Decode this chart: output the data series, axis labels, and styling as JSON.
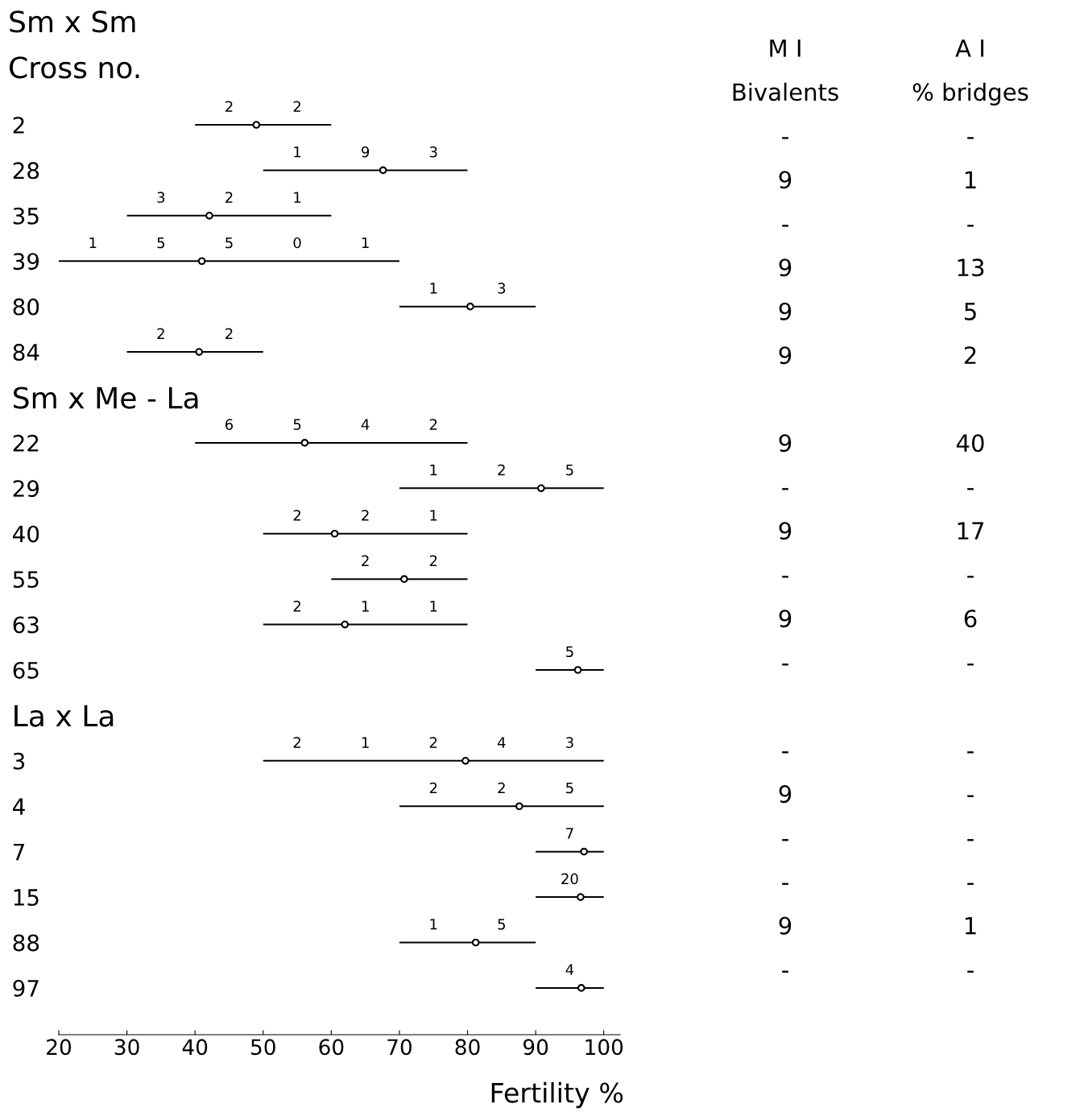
{
  "chart_data": [
    {
      "type": "bar",
      "orientation": "horizontal",
      "title": "Sm x Sm",
      "ylabel": "Cross no.",
      "xlabel": "Fertility %",
      "categories": [
        "2",
        "28",
        "35",
        "39",
        "80",
        "84",
        "Sm x Me - La",
        "22",
        "29",
        "40",
        "55",
        "63",
        "65",
        "La x La",
        "3",
        "4",
        "7",
        "15",
        "88",
        "97"
      ],
      "series": [
        {
          "type": "bar",
          "color": "#000000",
          "base": [
            40,
            50,
            30,
            20,
            70,
            30,
            null,
            40,
            70,
            50,
            60,
            50,
            90,
            null,
            50,
            70,
            90,
            90,
            70,
            90
          ],
          "values": [
            20,
            30,
            30,
            50,
            20,
            20,
            null,
            40,
            30,
            30,
            20,
            30,
            10,
            null,
            50,
            30,
            10,
            10,
            20,
            10
          ]
        },
        {
          "type": "scatter",
          "color": "#000000",
          "marker": "circle",
          "values": [
            49.0,
            67.6,
            42.1,
            41.0,
            80.4,
            40.6,
            null,
            56.1,
            90.8,
            60.5,
            70.7,
            62.0,
            96.2,
            null,
            79.7,
            87.6,
            97.1,
            96.6,
            81.2,
            96.7
          ]
        }
      ],
      "annotations": [
        {
          "text": "2",
          "x": 45,
          "y": "2"
        },
        {
          "text": "2",
          "x": 55,
          "y": "2"
        },
        {
          "text": "1",
          "x": 55,
          "y": "28"
        },
        {
          "text": "9",
          "x": 65,
          "y": "28"
        },
        {
          "text": "3",
          "x": 75,
          "y": "28"
        },
        {
          "text": "3",
          "x": 35,
          "y": "35"
        },
        {
          "text": "2",
          "x": 45,
          "y": "35"
        },
        {
          "text": "1",
          "x": 55,
          "y": "35"
        },
        {
          "text": "1",
          "x": 25,
          "y": "39"
        },
        {
          "text": "5",
          "x": 35,
          "y": "39"
        },
        {
          "text": "5",
          "x": 45,
          "y": "39"
        },
        {
          "text": "0",
          "x": 55,
          "y": "39"
        },
        {
          "text": "1",
          "x": 65,
          "y": "39"
        },
        {
          "text": "1",
          "x": 75,
          "y": "80"
        },
        {
          "text": "3",
          "x": 85,
          "y": "80"
        },
        {
          "text": "2",
          "x": 35,
          "y": "84"
        },
        {
          "text": "2",
          "x": 45,
          "y": "84"
        },
        {
          "text": "6",
          "x": 45,
          "y": "22"
        },
        {
          "text": "5",
          "x": 55,
          "y": "22"
        },
        {
          "text": "4",
          "x": 65,
          "y": "22"
        },
        {
          "text": "2",
          "x": 75,
          "y": "22"
        },
        {
          "text": "1",
          "x": 75,
          "y": "29"
        },
        {
          "text": "2",
          "x": 85,
          "y": "29"
        },
        {
          "text": "5",
          "x": 95,
          "y": "29"
        },
        {
          "text": "2",
          "x": 55,
          "y": "40"
        },
        {
          "text": "2",
          "x": 65,
          "y": "40"
        },
        {
          "text": "1",
          "x": 75,
          "y": "40"
        },
        {
          "text": "2",
          "x": 65,
          "y": "55"
        },
        {
          "text": "2",
          "x": 75,
          "y": "55"
        },
        {
          "text": "2",
          "x": 55,
          "y": "63"
        },
        {
          "text": "1",
          "x": 65,
          "y": "63"
        },
        {
          "text": "1",
          "x": 75,
          "y": "63"
        },
        {
          "text": "5",
          "x": 95,
          "y": "65"
        },
        {
          "text": "2",
          "x": 55,
          "y": "3"
        },
        {
          "text": "1",
          "x": 65,
          "y": "3"
        },
        {
          "text": "2",
          "x": 75,
          "y": "3"
        },
        {
          "text": "4",
          "x": 85,
          "y": "3"
        },
        {
          "text": "3",
          "x": 95,
          "y": "3"
        },
        {
          "text": "2",
          "x": 75,
          "y": "4"
        },
        {
          "text": "2",
          "x": 85,
          "y": "4"
        },
        {
          "text": "5",
          "x": 95,
          "y": "4"
        },
        {
          "text": "7",
          "x": 95,
          "y": "7"
        },
        {
          "text": "20",
          "x": 95,
          "y": "15"
        },
        {
          "text": "1",
          "x": 75,
          "y": "88"
        },
        {
          "text": "5",
          "x": 85,
          "y": "88"
        },
        {
          "text": "4",
          "x": 95,
          "y": "97"
        }
      ],
      "xlim": [
        20,
        102.4
      ],
      "xticks": [
        20,
        30,
        40,
        50,
        60,
        70,
        80,
        90,
        100
      ],
      "grid": false,
      "legend": false
    },
    {
      "type": "other",
      "annotations": [
        "M I\nBivalents\n-\n9\n-\n9\n9\n9\n\n9\n-\n9\n-\n9\n-\n\n-\n9\n-\n-\n9\n-",
        "A I\n% bridges\n-\n1\n-\n13\n5\n2\n\n40\n-\n17\n-\n6\n-\n\n-\n-\n-\n-\n1\n-"
      ]
    }
  ]
}
